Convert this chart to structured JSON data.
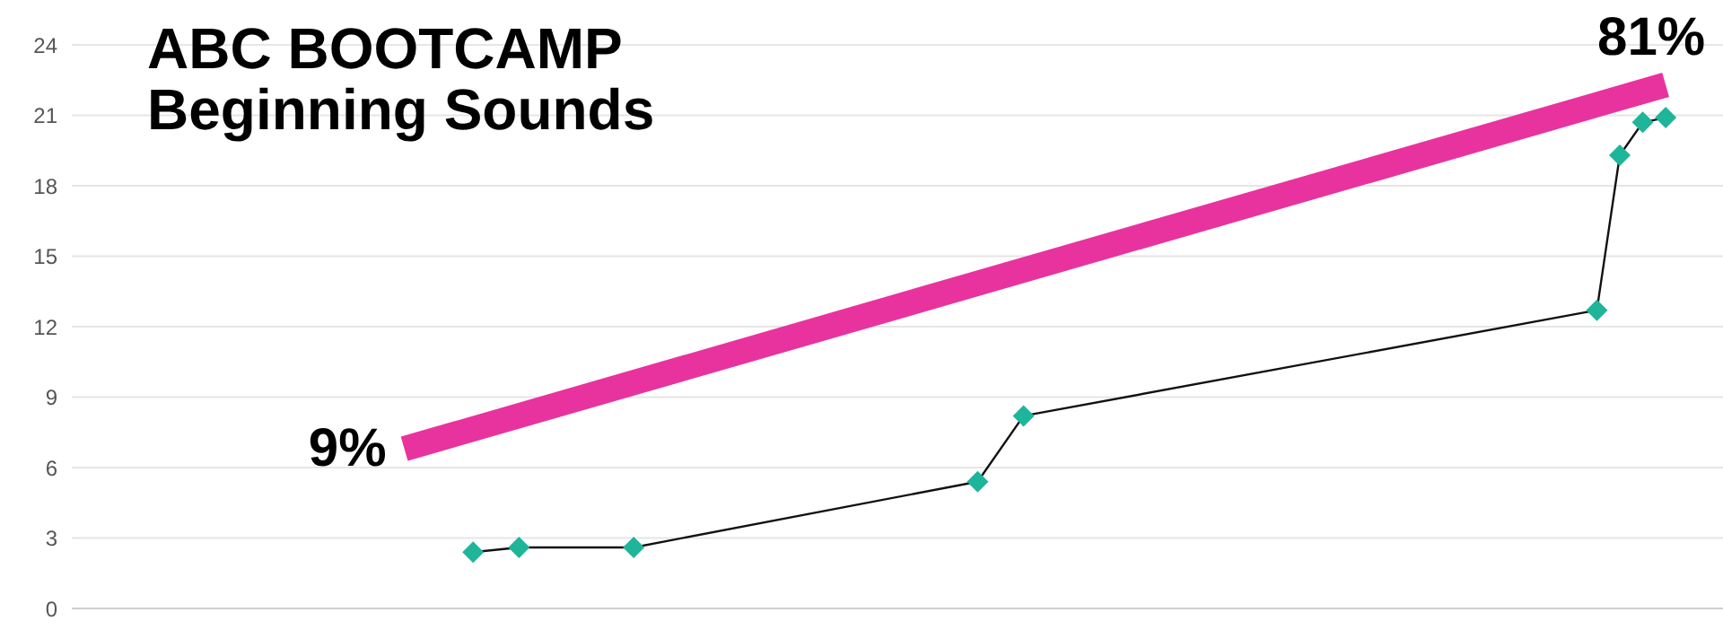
{
  "chart_data": {
    "type": "line",
    "title": "ABC BOOTCAMP",
    "subtitle": "Beginning Sounds",
    "categories": [
      null,
      null,
      null,
      null,
      null,
      null,
      null,
      null,
      null,
      null,
      null,
      null,
      null,
      null,
      null,
      null,
      null,
      null,
      null,
      null,
      null,
      null,
      null,
      null,
      null,
      null,
      null,
      null,
      null,
      null,
      null,
      null,
      null,
      null,
      null,
      null,
      null,
      null,
      null,
      null,
      null,
      null,
      null,
      null,
      null,
      null,
      null,
      null,
      null,
      null,
      null,
      null,
      null,
      null,
      null,
      null,
      null,
      null,
      null,
      null,
      null,
      null,
      null,
      null,
      null,
      null,
      null,
      null,
      null,
      null,
      null,
      null
    ],
    "ylim": [
      0,
      24
    ],
    "yticks": [
      0,
      3,
      6,
      9,
      12,
      15,
      18,
      21,
      24
    ],
    "tick_labels": "y",
    "grid": "y",
    "series": [
      {
        "color": "#e8339e",
        "marker": "none",
        "values": [
          null,
          null,
          null,
          null,
          null,
          null,
          null,
          null,
          null,
          null,
          null,
          null,
          null,
          null,
          6.8,
          null,
          null,
          null,
          null,
          null,
          null,
          null,
          null,
          null,
          null,
          null,
          null,
          null,
          null,
          null,
          null,
          null,
          null,
          null,
          null,
          null,
          null,
          null,
          null,
          null,
          null,
          null,
          null,
          null,
          null,
          null,
          null,
          null,
          null,
          null,
          null,
          null,
          null,
          null,
          null,
          null,
          null,
          null,
          null,
          null,
          null,
          null,
          null,
          null,
          null,
          null,
          null,
          null,
          null,
          22.3,
          null,
          null
        ]
      },
      {
        "color": "#1fb59a",
        "marker": "diamond",
        "values": [
          null,
          null,
          null,
          null,
          null,
          null,
          null,
          null,
          null,
          null,
          null,
          null,
          null,
          null,
          null,
          null,
          null,
          2.4,
          null,
          2.6,
          null,
          null,
          null,
          null,
          2.6,
          null,
          null,
          null,
          null,
          null,
          null,
          null,
          null,
          null,
          null,
          null,
          null,
          null,
          null,
          5.4,
          null,
          8.2,
          null,
          null,
          null,
          null,
          null,
          null,
          null,
          null,
          null,
          null,
          null,
          null,
          null,
          null,
          null,
          null,
          null,
          null,
          null,
          null,
          null,
          null,
          null,
          null,
          12.7,
          19.3,
          20.7,
          20.9,
          null,
          null
        ]
      }
    ],
    "annotations": [
      "9%",
      "81%"
    ]
  }
}
